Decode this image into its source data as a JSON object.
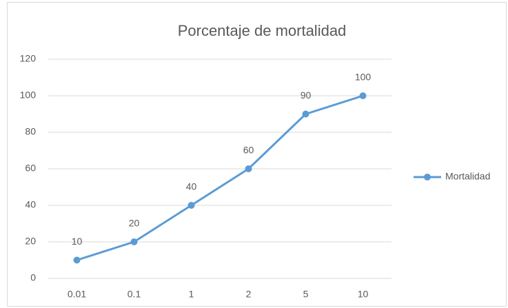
{
  "chart_data": {
    "type": "line",
    "title": "Porcentaje de mortalidad",
    "categories": [
      "0.01",
      "0.1",
      "1",
      "2",
      "5",
      "10"
    ],
    "series": [
      {
        "name": "Mortalidad",
        "color": "#5b9bd5",
        "values": [
          10,
          20,
          40,
          60,
          90,
          100
        ]
      }
    ],
    "ylim": [
      0,
      120
    ],
    "yticks": [
      0,
      20,
      40,
      60,
      80,
      100,
      120
    ],
    "grid": true,
    "legend": "right"
  }
}
